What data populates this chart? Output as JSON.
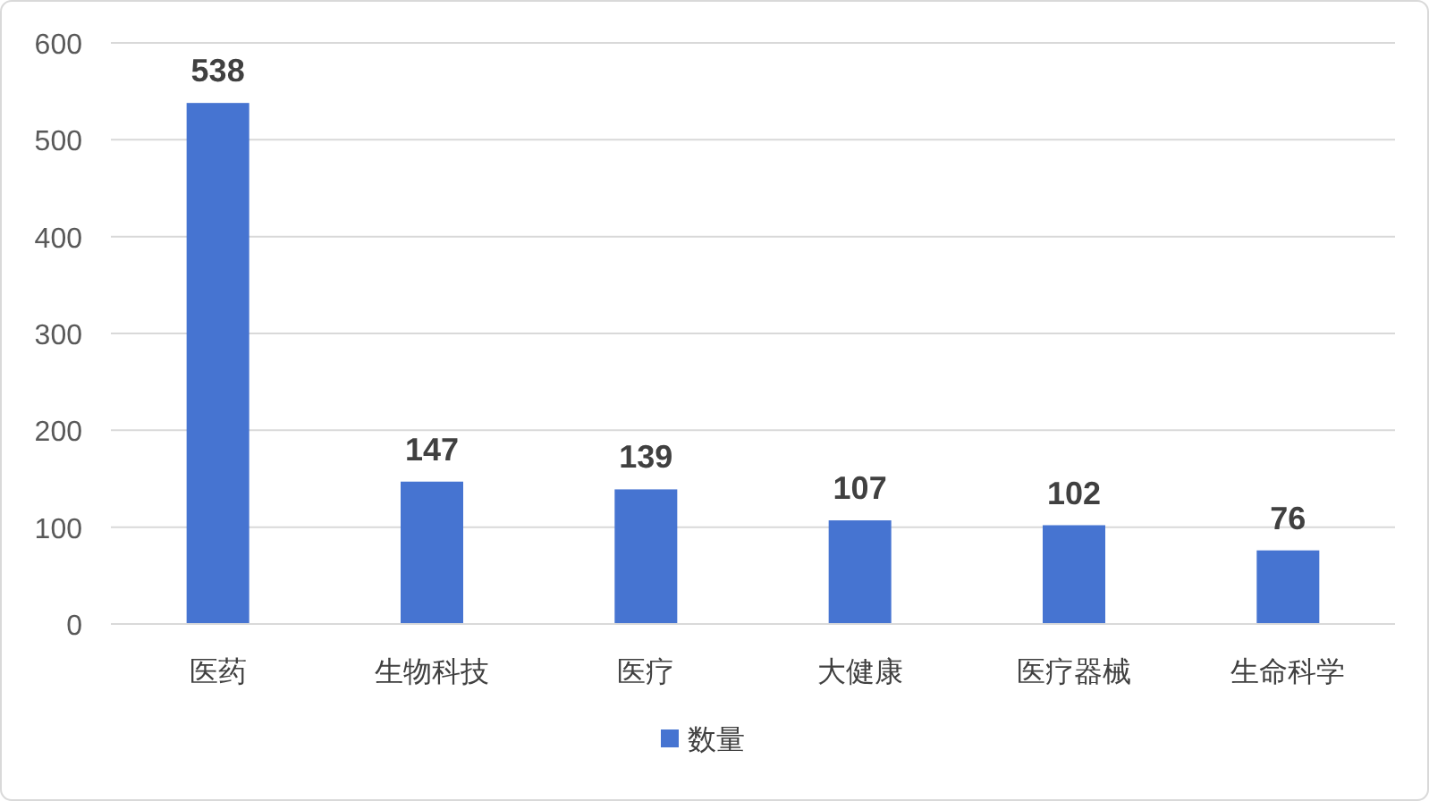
{
  "chart_data": {
    "type": "bar",
    "categories": [
      "医药",
      "生物科技",
      "医疗",
      "大健康",
      "医疗器械",
      "生命科学"
    ],
    "series": [
      {
        "name": "数量",
        "color": "#4674d1",
        "values": [
          538,
          147,
          139,
          107,
          102,
          76
        ]
      }
    ],
    "ylim": [
      0,
      600
    ],
    "yticks": [
      0,
      100,
      200,
      300,
      400,
      500,
      600
    ],
    "grid": "y",
    "legend": "bottom",
    "data_labels": true
  }
}
